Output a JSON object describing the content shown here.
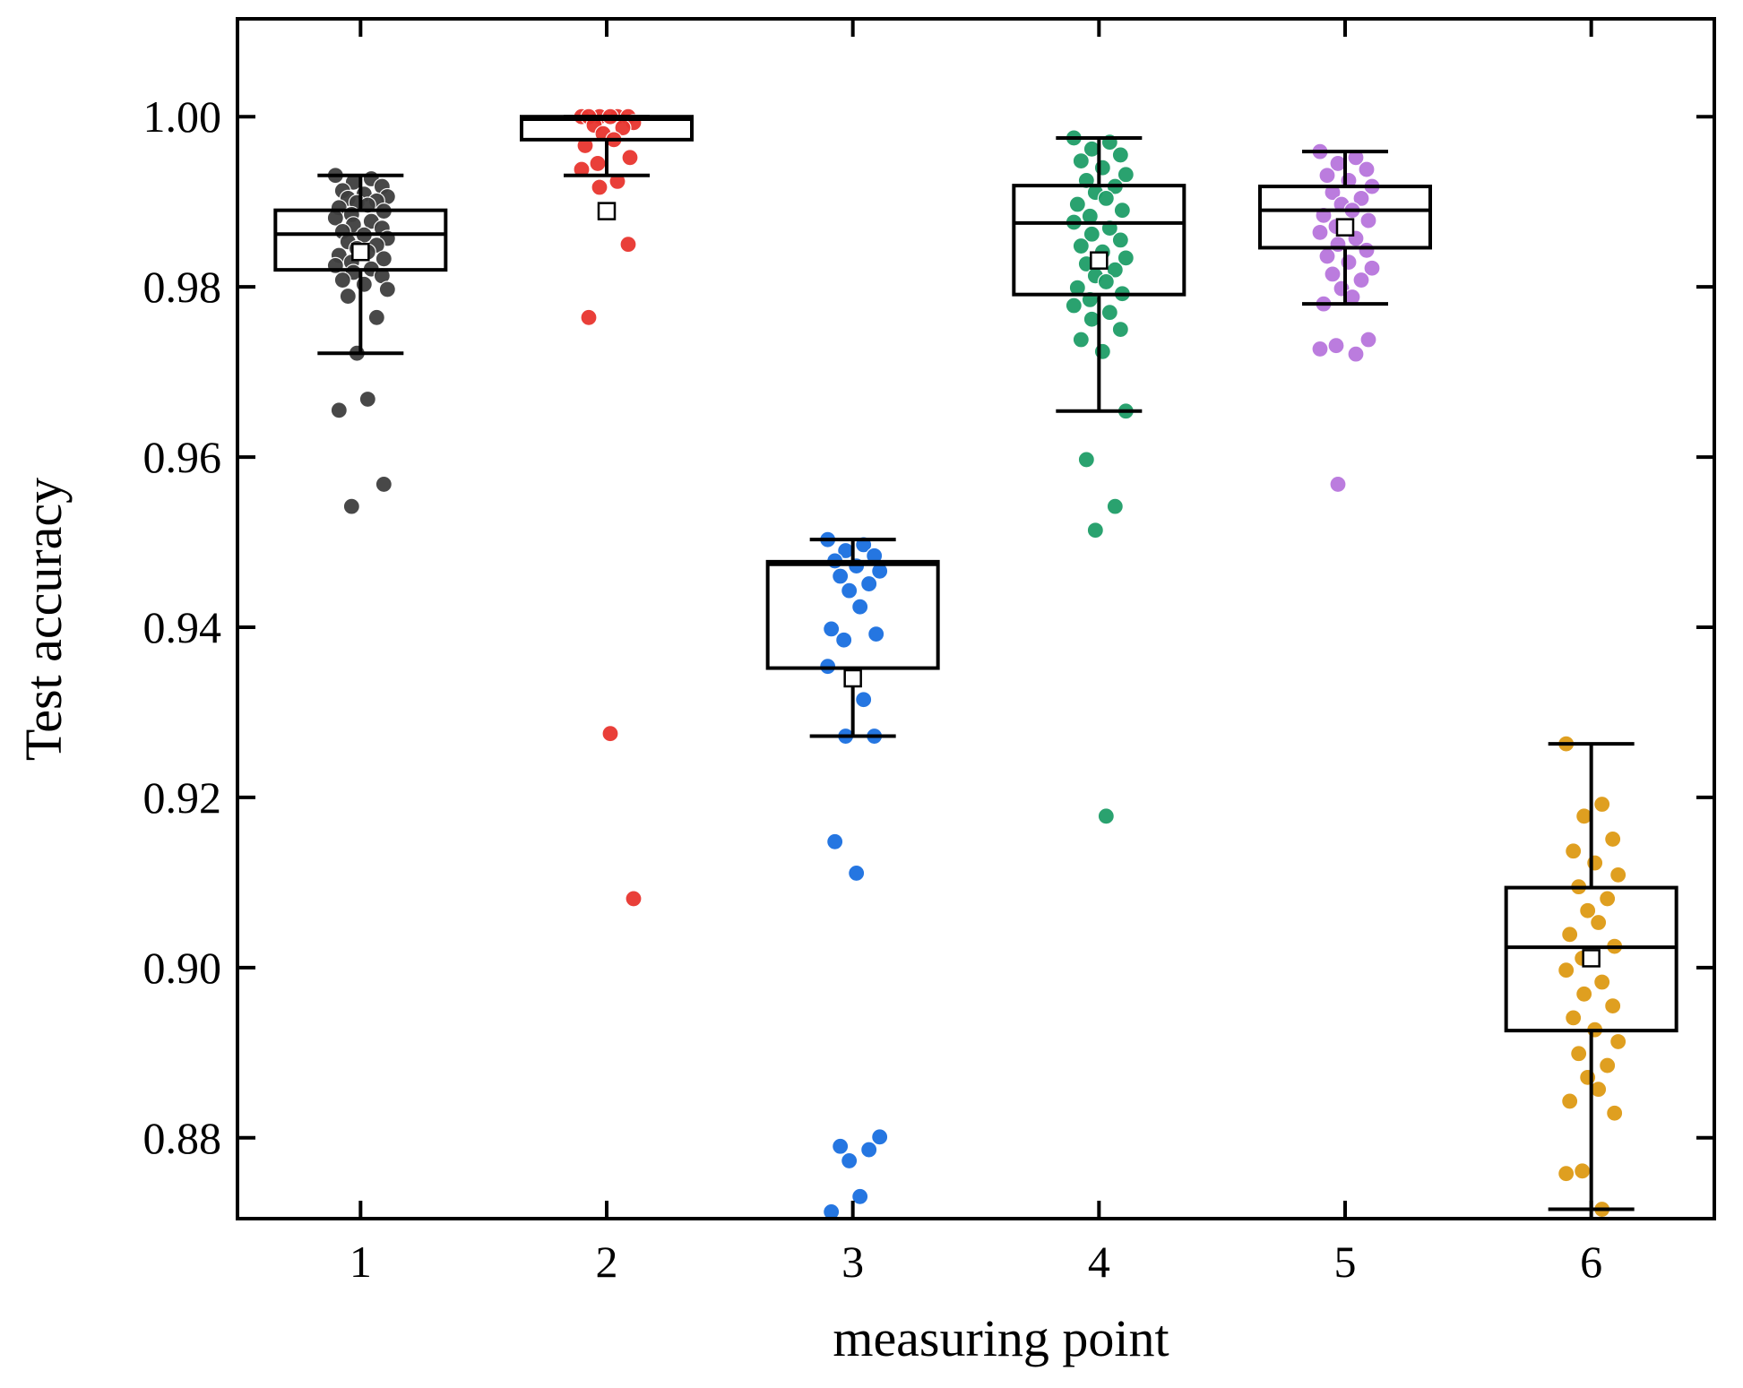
{
  "chart_data": {
    "type": "box",
    "xlabel": "measuring point",
    "ylabel": "Test accuracy",
    "xlim": [
      0.5,
      6.5
    ],
    "ylim": [
      0.8705,
      1.0115
    ],
    "categories": [
      "1",
      "2",
      "3",
      "4",
      "5",
      "6"
    ],
    "y_ticks": [
      0.88,
      0.9,
      0.92,
      0.94,
      0.96,
      0.98,
      1.0
    ],
    "y_tick_labels": [
      "0.88",
      "0.90",
      "0.92",
      "0.94",
      "0.96",
      "0.98",
      "1.00"
    ],
    "box_color": "#000000",
    "series": [
      {
        "name": "1",
        "color": "#3f3f3f",
        "q1": 0.982,
        "median": 0.9862,
        "q3": 0.989,
        "mean": 0.9841,
        "whisker_low": 0.9722,
        "whisker_high": 0.9931,
        "points": [
          0.9931,
          0.9927,
          0.9923,
          0.9918,
          0.9913,
          0.9909,
          0.9906,
          0.9904,
          0.9901,
          0.9899,
          0.9896,
          0.9893,
          0.9889,
          0.9885,
          0.9881,
          0.9877,
          0.9873,
          0.9869,
          0.9865,
          0.9861,
          0.9857,
          0.9853,
          0.9849,
          0.9845,
          0.9841,
          0.9837,
          0.9833,
          0.9829,
          0.9825,
          0.9821,
          0.9817,
          0.9813,
          0.9808,
          0.9803,
          0.9797,
          0.9789,
          0.9764,
          0.9722,
          0.9668,
          0.9655,
          0.9568,
          0.9542
        ]
      },
      {
        "name": "2",
        "color": "#e8352f",
        "q1": 0.9973,
        "median": 0.9997,
        "q3": 1.0,
        "mean": 0.9889,
        "whisker_low": 0.9931,
        "whisker_high": 1.0,
        "points": [
          1.0,
          1.0,
          1.0,
          1.0,
          1.0,
          1.0,
          0.9993,
          0.999,
          0.9987,
          0.998,
          0.9973,
          0.9966,
          0.9952,
          0.9945,
          0.9938,
          0.9924,
          0.9917,
          0.985,
          0.9764,
          0.9275,
          0.9081
        ]
      },
      {
        "name": "3",
        "color": "#1a6fe0",
        "q1": 0.9352,
        "median": 0.9474,
        "q3": 0.9477,
        "mean": 0.934,
        "whisker_low": 0.9272,
        "whisker_high": 0.9503,
        "points": [
          0.9503,
          0.9497,
          0.949,
          0.9484,
          0.9478,
          0.9472,
          0.9466,
          0.946,
          0.9451,
          0.9443,
          0.9424,
          0.9398,
          0.9392,
          0.9385,
          0.9354,
          0.9315,
          0.9272,
          0.9272,
          0.9148,
          0.9111,
          0.8801,
          0.879,
          0.8786,
          0.8773,
          0.8731,
          0.8713
        ]
      },
      {
        "name": "4",
        "color": "#1f9e68",
        "q1": 0.9791,
        "median": 0.9875,
        "q3": 0.9919,
        "mean": 0.9831,
        "whisker_low": 0.9654,
        "whisker_high": 0.9975,
        "points": [
          0.9975,
          0.997,
          0.9962,
          0.9955,
          0.9948,
          0.994,
          0.9932,
          0.9925,
          0.9918,
          0.9911,
          0.9904,
          0.9897,
          0.989,
          0.9883,
          0.9876,
          0.9869,
          0.9862,
          0.9855,
          0.9848,
          0.9841,
          0.9834,
          0.9827,
          0.982,
          0.9813,
          0.9806,
          0.9799,
          0.9792,
          0.9785,
          0.9778,
          0.977,
          0.9762,
          0.975,
          0.9738,
          0.9724,
          0.9654,
          0.9597,
          0.9542,
          0.9514,
          0.9178
        ]
      },
      {
        "name": "5",
        "color": "#b875dd",
        "q1": 0.9846,
        "median": 0.989,
        "q3": 0.9918,
        "mean": 0.987,
        "whisker_low": 0.978,
        "whisker_high": 0.9959,
        "points": [
          0.9959,
          0.9952,
          0.9945,
          0.9938,
          0.9931,
          0.9925,
          0.9918,
          0.9911,
          0.9904,
          0.9897,
          0.989,
          0.9884,
          0.9878,
          0.9871,
          0.9864,
          0.9857,
          0.985,
          0.9843,
          0.9836,
          0.9829,
          0.9822,
          0.9815,
          0.9808,
          0.9798,
          0.9788,
          0.978,
          0.9738,
          0.9731,
          0.9727,
          0.9721,
          0.9568
        ]
      },
      {
        "name": "6",
        "color": "#de9a15",
        "q1": 0.8926,
        "median": 0.9024,
        "q3": 0.9094,
        "mean": 0.9011,
        "whisker_low": 0.8716,
        "whisker_high": 0.9263,
        "points": [
          0.9263,
          0.9192,
          0.9178,
          0.9151,
          0.9137,
          0.9123,
          0.9109,
          0.9095,
          0.9081,
          0.9067,
          0.9053,
          0.9039,
          0.9025,
          0.9011,
          0.8997,
          0.8983,
          0.8969,
          0.8955,
          0.8941,
          0.8927,
          0.8913,
          0.8899,
          0.8885,
          0.8871,
          0.8857,
          0.8843,
          0.8829,
          0.8761,
          0.8758,
          0.8716
        ]
      }
    ]
  }
}
